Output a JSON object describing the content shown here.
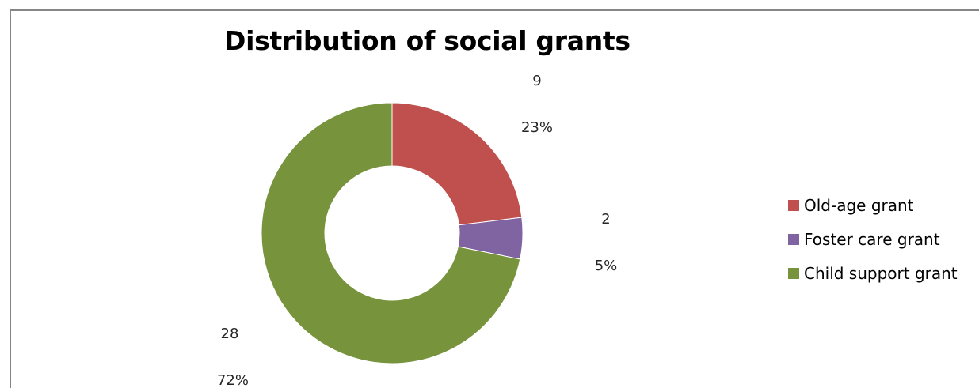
{
  "chart_data": {
    "type": "pie",
    "title": "Distribution of social grants",
    "categories": [
      "Old-age grant",
      "Foster care grant",
      "Child support grant"
    ],
    "values": [
      9,
      2,
      28
    ],
    "percent_labels": [
      "23%",
      "5%",
      "72%"
    ],
    "value_labels": [
      "9",
      "2",
      "28"
    ],
    "colors": [
      "#c0504d",
      "#8064a2",
      "#77933c"
    ],
    "legend_position": "right",
    "donut": true
  }
}
